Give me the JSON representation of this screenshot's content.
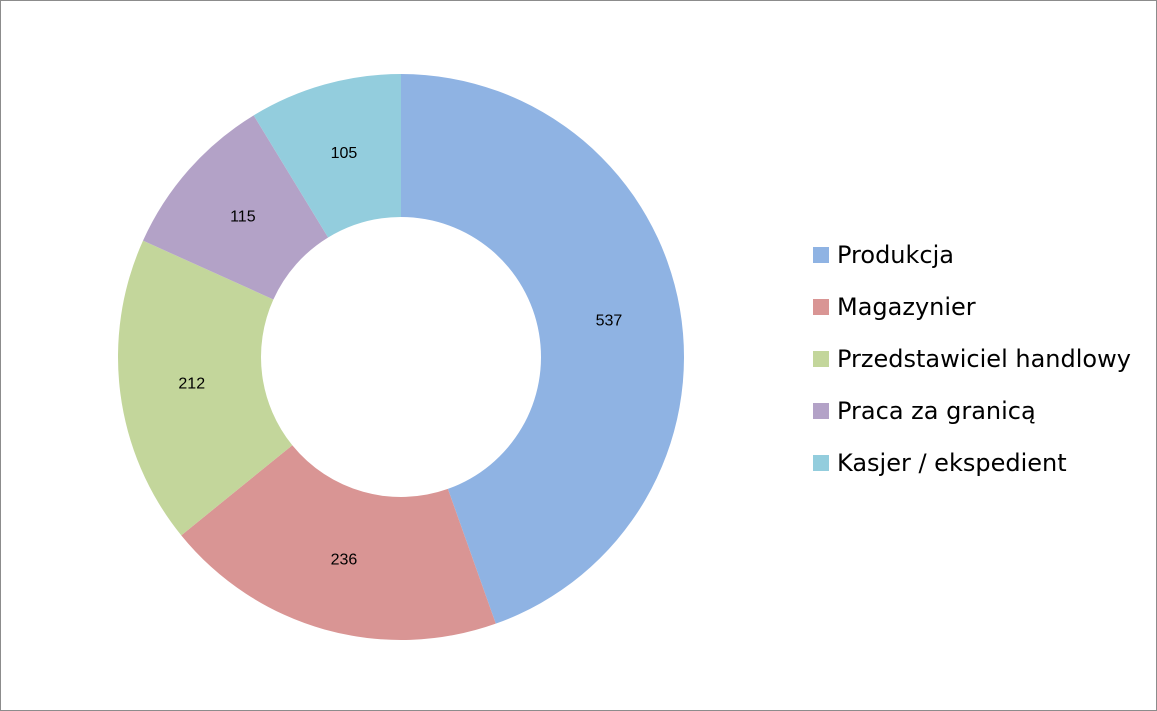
{
  "chart_data": {
    "type": "pie",
    "donut": true,
    "categories": [
      "Produkcja",
      "Magazynier",
      "Przedstawiciel handlowy",
      "Praca za granicą",
      "Kasjer / ekspedient"
    ],
    "values": [
      537,
      236,
      212,
      115,
      105
    ],
    "data_labels": [
      "537",
      "236",
      "212",
      "115",
      "105"
    ],
    "colors": [
      "#8fb3e3",
      "#d99594",
      "#c3d69b",
      "#b3a2c7",
      "#93cddd"
    ],
    "legend": "right",
    "start_angle": "top, clockwise"
  }
}
